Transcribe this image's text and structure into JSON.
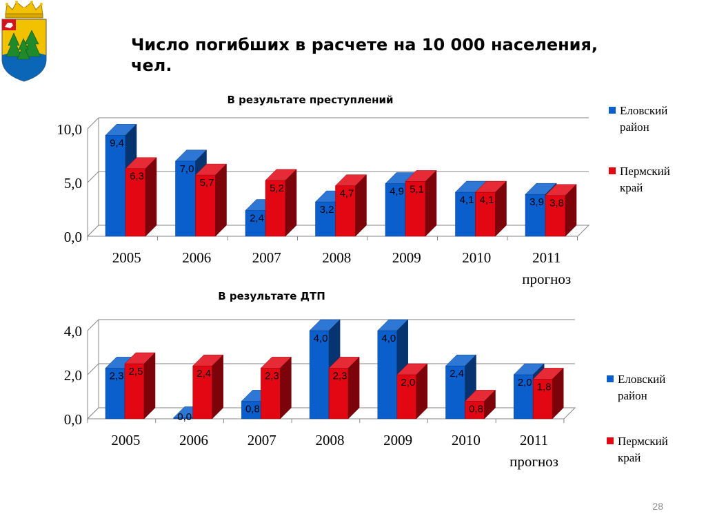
{
  "slide": {
    "title": "Число погибших в расчете на 10 000 населения, чел.",
    "page_number": "28"
  },
  "colors": {
    "series_blue": "#0a5fcc",
    "series_red": "#e30613",
    "background": "#ffffff"
  },
  "chart_data": [
    {
      "type": "bar",
      "title": "В результате преступлений",
      "categories": [
        [
          "2005"
        ],
        [
          "2006"
        ],
        [
          "2007"
        ],
        [
          "2008"
        ],
        [
          "2009"
        ],
        [
          "2010"
        ],
        [
          "2011",
          "прогноз"
        ]
      ],
      "series": [
        {
          "name": "Еловский район",
          "values": [
            9.4,
            7.0,
            2.4,
            3.2,
            4.9,
            4.1,
            3.9
          ],
          "labels": [
            "9,4",
            "7,0",
            "2,4",
            "3,2",
            "4,9",
            "4,1",
            "3,9"
          ]
        },
        {
          "name": "Пермский край",
          "values": [
            6.3,
            5.7,
            5.2,
            4.7,
            5.1,
            4.1,
            3.8
          ],
          "labels": [
            "6,3",
            "5,7",
            "5,2",
            "4,7",
            "5,1",
            "4,1",
            "3,8"
          ]
        }
      ],
      "ylim": [
        0,
        10
      ],
      "yticks": [
        "0,0",
        "5,0",
        "10,0"
      ],
      "legend": [
        [
          "Еловский",
          "район"
        ],
        [
          "Пермский",
          "край"
        ]
      ],
      "legend_position": "right",
      "grid": true
    },
    {
      "type": "bar",
      "title": "В результате ДТП",
      "categories": [
        [
          "2005"
        ],
        [
          "2006"
        ],
        [
          "2007"
        ],
        [
          "2008"
        ],
        [
          "2009"
        ],
        [
          "2010"
        ],
        [
          "2011",
          "прогноз"
        ]
      ],
      "series": [
        {
          "name": "Еловский район",
          "values": [
            2.3,
            0.0,
            0.8,
            4.0,
            4.0,
            2.4,
            2.0
          ],
          "labels": [
            "2,3",
            "0,0",
            "0,8",
            "4,0",
            "4,0",
            "2,4",
            "2,0"
          ]
        },
        {
          "name": "Пермский край",
          "values": [
            2.5,
            2.4,
            2.3,
            2.3,
            2.0,
            0.8,
            1.8
          ],
          "labels": [
            "2,5",
            "2,4",
            "2,3",
            "2,3",
            "2,0",
            "0,8",
            "1,8"
          ]
        }
      ],
      "ylim": [
        0,
        4
      ],
      "yticks": [
        "0,0",
        "2,0",
        "4,0"
      ],
      "legend": [
        [
          "Еловский",
          "район"
        ],
        [
          "Пермский",
          "край"
        ]
      ],
      "legend_position": "right",
      "grid": true
    }
  ]
}
